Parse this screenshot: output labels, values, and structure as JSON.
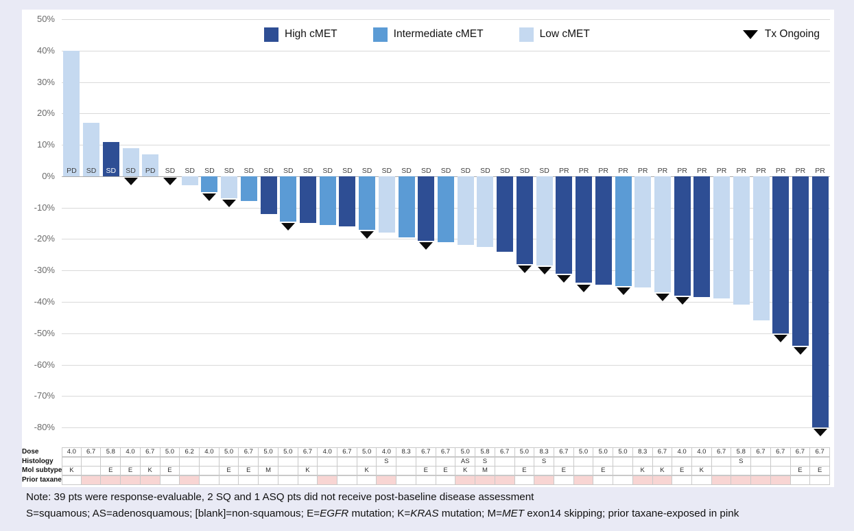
{
  "chart_data": {
    "type": "waterfall-bar",
    "description": "Best percent change in tumor size per patient, waterfall plot",
    "ylim": [
      -80,
      50
    ],
    "grid_step": 10,
    "y_ticks": [
      "50%",
      "40%",
      "30%",
      "20%",
      "10%",
      "0%",
      "-10%",
      "-20%",
      "-30%",
      "-40%",
      "-50%",
      "-60%",
      "-70%",
      "-80%"
    ],
    "legend": {
      "items": [
        {
          "label": "High cMET",
          "key": "high",
          "color": "#2e4e94"
        },
        {
          "label": "Intermediate cMET",
          "key": "intermediate",
          "color": "#5b9bd5"
        },
        {
          "label": "Low cMET",
          "key": "low",
          "color": "#c5d9f0"
        }
      ],
      "marker": {
        "label": "Tx Ongoing",
        "shape": "down-triangle",
        "color": "#000000"
      }
    },
    "colors": {
      "high": "#2e4e94",
      "intermediate": "#5b9bd5",
      "low": "#c5d9f0",
      "prior_taxane_pink": "#f8d5d3"
    },
    "patients": [
      {
        "response": "PD",
        "value": 40,
        "cmet": "low",
        "tx_ongoing": false,
        "dose": "4.0",
        "histology": "",
        "mol": "K",
        "prior_taxane": false
      },
      {
        "response": "SD",
        "value": 17,
        "cmet": "low",
        "tx_ongoing": false,
        "dose": "6.7",
        "histology": "",
        "mol": "",
        "prior_taxane": true
      },
      {
        "response": "SD",
        "value": 11,
        "cmet": "high",
        "tx_ongoing": false,
        "dose": "5.8",
        "histology": "",
        "mol": "E",
        "prior_taxane": true
      },
      {
        "response": "SD",
        "value": 9,
        "cmet": "low",
        "tx_ongoing": true,
        "dose": "4.0",
        "histology": "",
        "mol": "E",
        "prior_taxane": true
      },
      {
        "response": "PD",
        "value": 7,
        "cmet": "low",
        "tx_ongoing": false,
        "dose": "6.7",
        "histology": "",
        "mol": "K",
        "prior_taxane": true
      },
      {
        "response": "SD",
        "value": 0,
        "cmet": null,
        "tx_ongoing": true,
        "dose": "5.0",
        "histology": "",
        "mol": "E",
        "prior_taxane": false
      },
      {
        "response": "SD",
        "value": -3,
        "cmet": "low",
        "tx_ongoing": false,
        "dose": "6.2",
        "histology": "",
        "mol": "",
        "prior_taxane": true
      },
      {
        "response": "SD",
        "value": -5,
        "cmet": "intermediate",
        "tx_ongoing": true,
        "dose": "4.0",
        "histology": "",
        "mol": "",
        "prior_taxane": false
      },
      {
        "response": "SD",
        "value": -7,
        "cmet": "low",
        "tx_ongoing": true,
        "dose": "5.0",
        "histology": "",
        "mol": "E",
        "prior_taxane": false
      },
      {
        "response": "SD",
        "value": -8,
        "cmet": "intermediate",
        "tx_ongoing": false,
        "dose": "6.7",
        "histology": "",
        "mol": "E",
        "prior_taxane": false
      },
      {
        "response": "SD",
        "value": -12,
        "cmet": "high",
        "tx_ongoing": false,
        "dose": "5.0",
        "histology": "",
        "mol": "M",
        "prior_taxane": false
      },
      {
        "response": "SD",
        "value": -14.5,
        "cmet": "intermediate",
        "tx_ongoing": true,
        "dose": "5.0",
        "histology": "",
        "mol": "",
        "prior_taxane": false
      },
      {
        "response": "SD",
        "value": -15,
        "cmet": "high",
        "tx_ongoing": false,
        "dose": "6.7",
        "histology": "",
        "mol": "K",
        "prior_taxane": false
      },
      {
        "response": "SD",
        "value": -15.5,
        "cmet": "intermediate",
        "tx_ongoing": false,
        "dose": "4.0",
        "histology": "",
        "mol": "",
        "prior_taxane": true
      },
      {
        "response": "SD",
        "value": -16,
        "cmet": "high",
        "tx_ongoing": false,
        "dose": "6.7",
        "histology": "",
        "mol": "",
        "prior_taxane": false
      },
      {
        "response": "SD",
        "value": -17,
        "cmet": "intermediate",
        "tx_ongoing": true,
        "dose": "5.0",
        "histology": "",
        "mol": "K",
        "prior_taxane": false
      },
      {
        "response": "SD",
        "value": -18,
        "cmet": "low",
        "tx_ongoing": false,
        "dose": "4.0",
        "histology": "S",
        "mol": "",
        "prior_taxane": true
      },
      {
        "response": "SD",
        "value": -19.5,
        "cmet": "intermediate",
        "tx_ongoing": false,
        "dose": "8.3",
        "histology": "",
        "mol": "",
        "prior_taxane": false
      },
      {
        "response": "SD",
        "value": -20.5,
        "cmet": "high",
        "tx_ongoing": true,
        "dose": "6.7",
        "histology": "",
        "mol": "E",
        "prior_taxane": false
      },
      {
        "response": "SD",
        "value": -21,
        "cmet": "intermediate",
        "tx_ongoing": false,
        "dose": "6.7",
        "histology": "",
        "mol": "E",
        "prior_taxane": false
      },
      {
        "response": "SD",
        "value": -22,
        "cmet": "low",
        "tx_ongoing": false,
        "dose": "5.0",
        "histology": "AS",
        "mol": "K",
        "prior_taxane": true
      },
      {
        "response": "SD",
        "value": -22.5,
        "cmet": "low",
        "tx_ongoing": false,
        "dose": "5.8",
        "histology": "S",
        "mol": "M",
        "prior_taxane": true
      },
      {
        "response": "SD",
        "value": -24,
        "cmet": "high",
        "tx_ongoing": false,
        "dose": "6.7",
        "histology": "",
        "mol": "",
        "prior_taxane": true
      },
      {
        "response": "SD",
        "value": -28,
        "cmet": "high",
        "tx_ongoing": true,
        "dose": "5.0",
        "histology": "",
        "mol": "E",
        "prior_taxane": false
      },
      {
        "response": "SD",
        "value": -28.5,
        "cmet": "low",
        "tx_ongoing": true,
        "dose": "8.3",
        "histology": "S",
        "mol": "",
        "prior_taxane": true
      },
      {
        "response": "PR",
        "value": -31,
        "cmet": "high",
        "tx_ongoing": true,
        "dose": "6.7",
        "histology": "",
        "mol": "E",
        "prior_taxane": false
      },
      {
        "response": "PR",
        "value": -34,
        "cmet": "high",
        "tx_ongoing": true,
        "dose": "5.0",
        "histology": "",
        "mol": "",
        "prior_taxane": true
      },
      {
        "response": "PR",
        "value": -34.5,
        "cmet": "high",
        "tx_ongoing": false,
        "dose": "5.0",
        "histology": "",
        "mol": "E",
        "prior_taxane": false
      },
      {
        "response": "PR",
        "value": -35,
        "cmet": "intermediate",
        "tx_ongoing": true,
        "dose": "5.0",
        "histology": "",
        "mol": "",
        "prior_taxane": false
      },
      {
        "response": "PR",
        "value": -35.5,
        "cmet": "low",
        "tx_ongoing": false,
        "dose": "8.3",
        "histology": "",
        "mol": "K",
        "prior_taxane": true
      },
      {
        "response": "PR",
        "value": -37,
        "cmet": "low",
        "tx_ongoing": true,
        "dose": "6.7",
        "histology": "",
        "mol": "K",
        "prior_taxane": true
      },
      {
        "response": "PR",
        "value": -38,
        "cmet": "high",
        "tx_ongoing": true,
        "dose": "4.0",
        "histology": "",
        "mol": "E",
        "prior_taxane": false
      },
      {
        "response": "PR",
        "value": -38.5,
        "cmet": "high",
        "tx_ongoing": false,
        "dose": "4.0",
        "histology": "",
        "mol": "K",
        "prior_taxane": false
      },
      {
        "response": "PR",
        "value": -39,
        "cmet": "low",
        "tx_ongoing": false,
        "dose": "6.7",
        "histology": "",
        "mol": "",
        "prior_taxane": true
      },
      {
        "response": "PR",
        "value": -41,
        "cmet": "low",
        "tx_ongoing": false,
        "dose": "5.8",
        "histology": "S",
        "mol": "",
        "prior_taxane": true
      },
      {
        "response": "PR",
        "value": -46,
        "cmet": "low",
        "tx_ongoing": false,
        "dose": "6.7",
        "histology": "",
        "mol": "",
        "prior_taxane": true
      },
      {
        "response": "PR",
        "value": -50,
        "cmet": "high",
        "tx_ongoing": true,
        "dose": "6.7",
        "histology": "",
        "mol": "",
        "prior_taxane": true
      },
      {
        "response": "PR",
        "value": -54,
        "cmet": "high",
        "tx_ongoing": true,
        "dose": "6.7",
        "histology": "",
        "mol": "E",
        "prior_taxane": false
      },
      {
        "response": "PR",
        "value": -80,
        "cmet": "high",
        "tx_ongoing": true,
        "dose": "6.7",
        "histology": "",
        "mol": "E",
        "prior_taxane": false
      }
    ],
    "table_row_labels": [
      "Dose",
      "Histology",
      "Mol subtype",
      "Prior taxane"
    ],
    "notes": {
      "line1": [
        {
          "text": "Note: 39 pts were response-evaluable, 2 SQ and 1 ASQ pts did not receive post-baseline disease assessment",
          "italic": false
        }
      ],
      "line2": [
        {
          "text": "S=squamous; AS=adenosquamous; [blank]=non-squamous; E=",
          "italic": false
        },
        {
          "text": "EGFR",
          "italic": true
        },
        {
          "text": " mutation; K=",
          "italic": false
        },
        {
          "text": "KRAS",
          "italic": true
        },
        {
          "text": " mutation; M=",
          "italic": false
        },
        {
          "text": "MET",
          "italic": true
        },
        {
          "text": " exon14 skipping; prior taxane-exposed in pink",
          "italic": false
        }
      ]
    }
  }
}
